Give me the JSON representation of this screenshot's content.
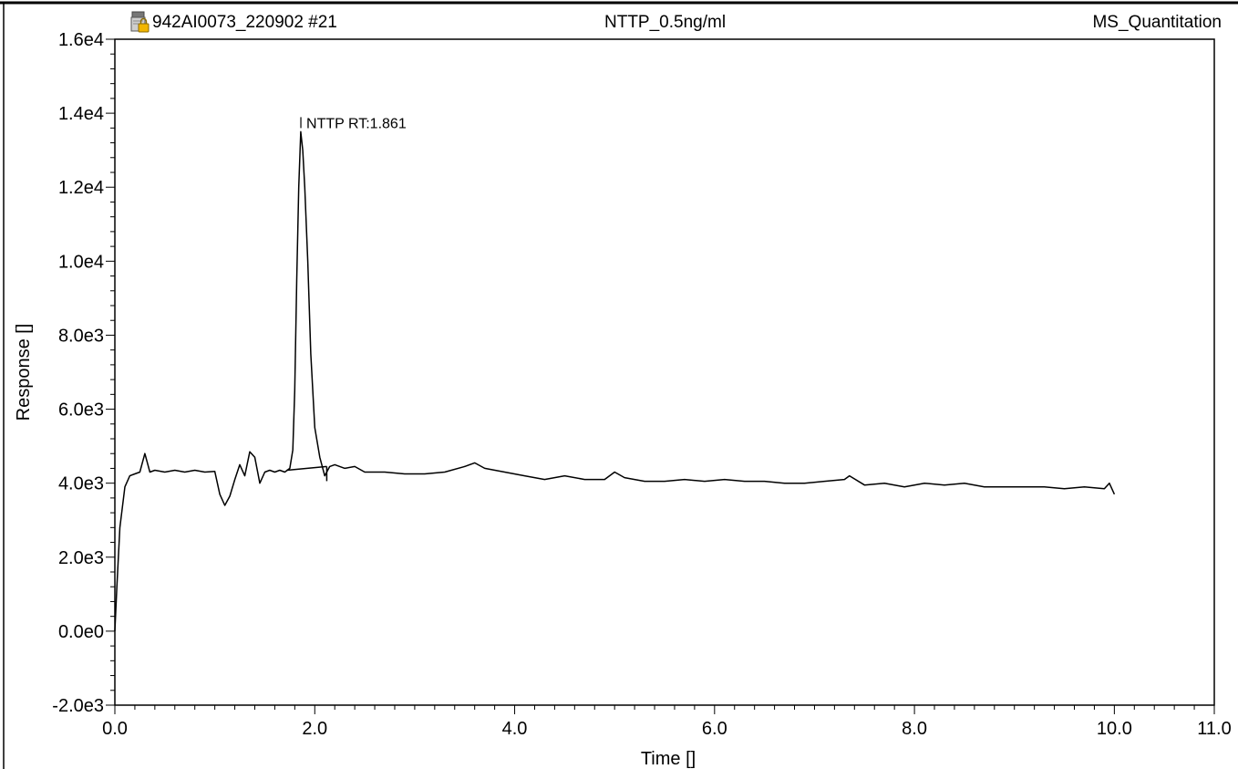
{
  "header": {
    "file_label": "942AI0073_220902 #21",
    "sample_name": "NTTP_0.5ng/ml",
    "method_name": "MS_Quantitation",
    "file_icon": "locked-data-file-icon"
  },
  "chart_data": {
    "type": "line",
    "xlabel": "Time []",
    "ylabel": "Response []",
    "xlim": [
      0.0,
      11.0
    ],
    "ylim": [
      -2000,
      16000
    ],
    "x_ticks": [
      {
        "value": 0,
        "label": "0.0"
      },
      {
        "value": 2,
        "label": "2.0"
      },
      {
        "value": 4,
        "label": "4.0"
      },
      {
        "value": 6,
        "label": "6.0"
      },
      {
        "value": 8,
        "label": "8.0"
      },
      {
        "value": 10,
        "label": "10.0"
      },
      {
        "value": 11,
        "label": "11.0"
      }
    ],
    "y_ticks": [
      {
        "value": -2000,
        "label": "-2.0e3"
      },
      {
        "value": 0,
        "label": "0.0e0"
      },
      {
        "value": 2000,
        "label": "2.0e3"
      },
      {
        "value": 4000,
        "label": "4.0e3"
      },
      {
        "value": 6000,
        "label": "6.0e3"
      },
      {
        "value": 8000,
        "label": "8.0e3"
      },
      {
        "value": 10000,
        "label": "1.0e4"
      },
      {
        "value": 12000,
        "label": "1.2e4"
      },
      {
        "value": 14000,
        "label": "1.4e4"
      },
      {
        "value": 16000,
        "label": "1.6e4"
      }
    ],
    "grid": false,
    "series": [
      {
        "color": "#000000",
        "x": [
          0.0,
          0.02,
          0.05,
          0.1,
          0.15,
          0.2,
          0.25,
          0.3,
          0.35,
          0.4,
          0.5,
          0.6,
          0.7,
          0.8,
          0.9,
          1.0,
          1.05,
          1.1,
          1.15,
          1.2,
          1.25,
          1.3,
          1.35,
          1.4,
          1.45,
          1.5,
          1.55,
          1.6,
          1.65,
          1.7,
          1.75,
          1.78,
          1.8,
          1.82,
          1.84,
          1.86,
          1.88,
          1.9,
          1.93,
          1.96,
          2.0,
          2.05,
          2.1,
          2.15,
          2.2,
          2.3,
          2.4,
          2.5,
          2.7,
          2.9,
          3.1,
          3.3,
          3.5,
          3.6,
          3.7,
          3.9,
          4.1,
          4.3,
          4.5,
          4.7,
          4.9,
          5.0,
          5.1,
          5.3,
          5.5,
          5.7,
          5.9,
          6.1,
          6.3,
          6.5,
          6.7,
          6.9,
          7.1,
          7.3,
          7.35,
          7.5,
          7.7,
          7.9,
          8.1,
          8.3,
          8.5,
          8.7,
          8.9,
          9.1,
          9.3,
          9.5,
          9.7,
          9.9,
          9.95,
          10.0
        ],
        "y": [
          0,
          1200,
          2800,
          3900,
          4200,
          4250,
          4300,
          4800,
          4300,
          4350,
          4300,
          4350,
          4300,
          4350,
          4300,
          4320,
          3700,
          3400,
          3650,
          4100,
          4500,
          4200,
          4850,
          4700,
          4000,
          4300,
          4350,
          4300,
          4350,
          4300,
          4400,
          4900,
          6500,
          9500,
          12000,
          13500,
          13000,
          12000,
          10000,
          7500,
          5500,
          4700,
          4200,
          4450,
          4500,
          4400,
          4450,
          4300,
          4300,
          4250,
          4250,
          4300,
          4450,
          4550,
          4400,
          4300,
          4200,
          4100,
          4200,
          4100,
          4100,
          4300,
          4150,
          4050,
          4050,
          4100,
          4050,
          4100,
          4050,
          4050,
          4000,
          4000,
          4050,
          4100,
          4200,
          3950,
          4000,
          3900,
          4000,
          3950,
          4000,
          3900,
          3900,
          3900,
          3900,
          3850,
          3900,
          3850,
          4000,
          3700
        ]
      }
    ],
    "annotations": [
      {
        "text": "NTTP RT:1.861",
        "x": 1.861,
        "y": 13500
      }
    ],
    "integration_baseline": {
      "start": {
        "x": 1.72,
        "y": 4350
      },
      "end": {
        "x": 2.12,
        "y": 4450
      }
    }
  }
}
